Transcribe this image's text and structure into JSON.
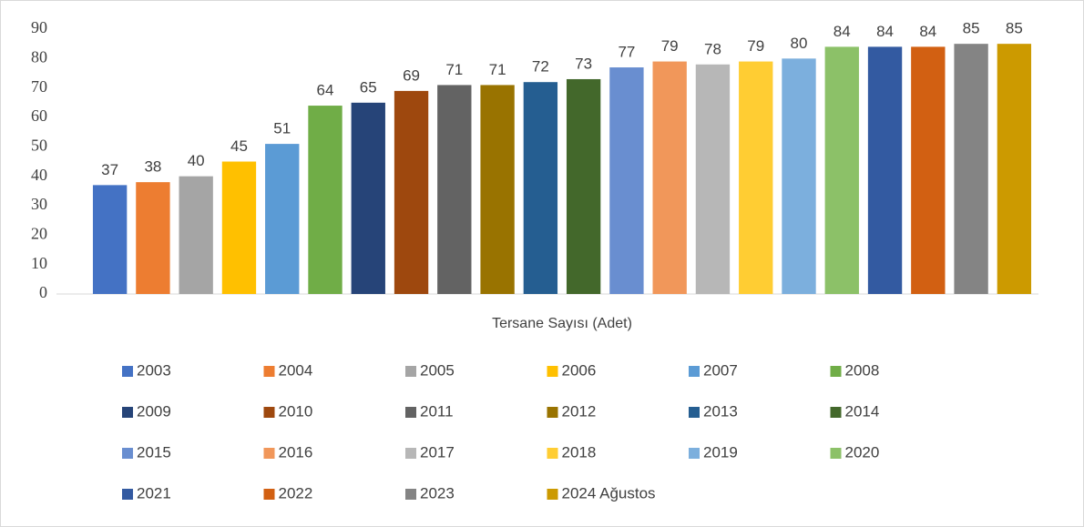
{
  "chart_data": {
    "type": "bar",
    "categories": [
      "Tersane Sayısı (Adet)"
    ],
    "series": [
      {
        "name": "2003",
        "color": "#4472c4",
        "values": [
          37
        ]
      },
      {
        "name": "2004",
        "color": "#ed7d31",
        "values": [
          38
        ]
      },
      {
        "name": "2005",
        "color": "#a5a5a5",
        "values": [
          40
        ]
      },
      {
        "name": "2006",
        "color": "#ffc000",
        "values": [
          45
        ]
      },
      {
        "name": "2007",
        "color": "#5b9bd5",
        "values": [
          51
        ]
      },
      {
        "name": "2008",
        "color": "#70ad47",
        "values": [
          64
        ]
      },
      {
        "name": "2009",
        "color": "#264478",
        "values": [
          65
        ]
      },
      {
        "name": "2010",
        "color": "#9e480e",
        "values": [
          69
        ]
      },
      {
        "name": "2011",
        "color": "#636363",
        "values": [
          71
        ]
      },
      {
        "name": "2012",
        "color": "#997300",
        "values": [
          71
        ]
      },
      {
        "name": "2013",
        "color": "#255e91",
        "values": [
          72
        ]
      },
      {
        "name": "2014",
        "color": "#43682b",
        "values": [
          73
        ]
      },
      {
        "name": "2015",
        "color": "#698ed0",
        "values": [
          77
        ]
      },
      {
        "name": "2016",
        "color": "#f1975a",
        "values": [
          79
        ]
      },
      {
        "name": "2017",
        "color": "#b7b7b7",
        "values": [
          78
        ]
      },
      {
        "name": "2018",
        "color": "#ffcd33",
        "values": [
          79
        ]
      },
      {
        "name": "2019",
        "color": "#7cafdd",
        "values": [
          80
        ]
      },
      {
        "name": "2020",
        "color": "#8cc168",
        "values": [
          84
        ]
      },
      {
        "name": "2021",
        "color": "#335aa1",
        "values": [
          84
        ]
      },
      {
        "name": "2022",
        "color": "#d26012",
        "values": [
          84
        ]
      },
      {
        "name": "2023",
        "color": "#848484",
        "values": [
          85
        ]
      },
      {
        "name": "2024 Ağustos",
        "color": "#cc9a00",
        "values": [
          85
        ]
      }
    ],
    "ylim": [
      0,
      90
    ],
    "yticks": [
      0,
      10,
      20,
      30,
      40,
      50,
      60,
      70,
      80,
      90
    ],
    "grid": false,
    "legend": "bottom"
  }
}
